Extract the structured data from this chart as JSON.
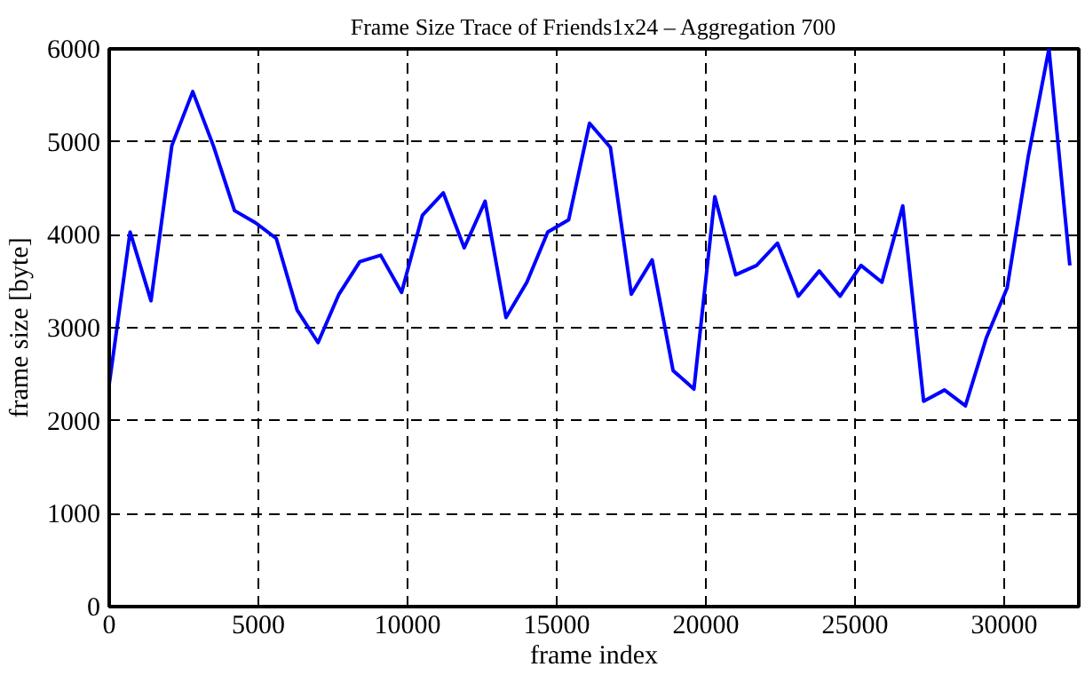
{
  "chart_data": {
    "type": "line",
    "title": "Frame Size Trace of Friends1x24 – Aggregation 700",
    "xlabel": "frame index",
    "ylabel": "frame size [byte]",
    "x": [
      0,
      700,
      1400,
      2100,
      2800,
      3500,
      4200,
      4900,
      5600,
      6300,
      7000,
      7700,
      8400,
      9100,
      9800,
      10500,
      11200,
      11900,
      12600,
      13300,
      14000,
      14700,
      15400,
      16100,
      16800,
      17500,
      18200,
      18900,
      19600,
      20300,
      21000,
      21700,
      22400,
      23100,
      23800,
      24500,
      25200,
      25900,
      26600,
      27300,
      28000,
      28700,
      29400,
      30100,
      30800,
      31500,
      32200
    ],
    "series": [
      {
        "color": "#0000ff",
        "values": [
          2390,
          4030,
          3290,
          4960,
          5540,
          4950,
          4260,
          4130,
          3960,
          3190,
          2840,
          3360,
          3710,
          3780,
          3380,
          4210,
          4450,
          3860,
          4360,
          3110,
          3490,
          4030,
          4160,
          5200,
          4940,
          3360,
          3730,
          2540,
          2340,
          4410,
          3570,
          3670,
          3910,
          3340,
          3610,
          3340,
          3670,
          3490,
          4310,
          2210,
          2330,
          2160,
          2890,
          3430,
          4830,
          6000,
          3670
        ]
      }
    ],
    "xlim": [
      0,
      32500
    ],
    "ylim": [
      0,
      6000
    ],
    "xticks": [
      0,
      5000,
      10000,
      15000,
      20000,
      25000,
      30000
    ],
    "yticks": [
      0,
      1000,
      2000,
      3000,
      4000,
      5000,
      6000
    ],
    "grid": true,
    "line_style": "solid"
  }
}
